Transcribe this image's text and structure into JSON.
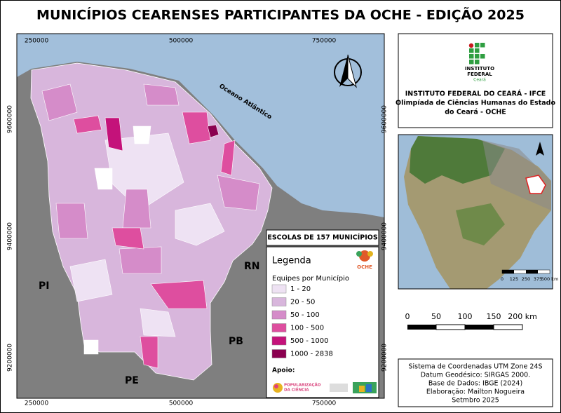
{
  "title": "MUNICÍPIOS CEARENSES PARTICIPANTES DA OCHE - EDIÇÃO 2025",
  "map": {
    "grid_x_labels": [
      250000,
      500000,
      750000
    ],
    "grid_y_labels": [
      9600000,
      9400000,
      9200000
    ],
    "ocean_label": "Oceano Atlântico",
    "state_labels": [
      "PI",
      "RN",
      "PB",
      "PE"
    ]
  },
  "legend": {
    "header": "ESCOLAS DE 157 MUNICÍPIOS",
    "title": "Legenda",
    "subtitle": "Equipes por Município",
    "classes": [
      {
        "label": "1 - 20",
        "color": "#eee2f3"
      },
      {
        "label": "20 - 50",
        "color": "#d8b6dc"
      },
      {
        "label": "50 - 100",
        "color": "#d58cc9"
      },
      {
        "label": "100 - 500",
        "color": "#de4e9f"
      },
      {
        "label": "500 - 1000",
        "color": "#c4127a"
      },
      {
        "label": "1000 - 2838",
        "color": "#8b0050"
      }
    ],
    "logo_text": "OCHE",
    "support_label": "Apoio:",
    "support_logo_text": [
      "POPULARIZAÇÃO",
      "DA CIÊNCIA"
    ]
  },
  "institution": {
    "logo_lines": [
      "INSTITUTO",
      "FEDERAL",
      "Ceará"
    ],
    "lines": [
      "INSTITUTO FEDERAL DO CEARÁ - IFCE",
      "Olimpíada de Ciências Humanas do Estado",
      "do Ceará - OCHE"
    ]
  },
  "inset": {
    "scale_labels": [
      "0",
      "125",
      "250",
      "375",
      "500 km"
    ]
  },
  "scale_bar": {
    "labels": [
      "0",
      "50",
      "100",
      "150",
      "200 km"
    ]
  },
  "info": {
    "lines": [
      "Sistema de Coordenadas UTM Zone 24S",
      "Datum Geodésico: SIRGAS 2000.",
      "Base de Dados: IBGE (2024)",
      "Elaboração: Mailton Nogueira",
      "Setmbro 2025"
    ]
  }
}
